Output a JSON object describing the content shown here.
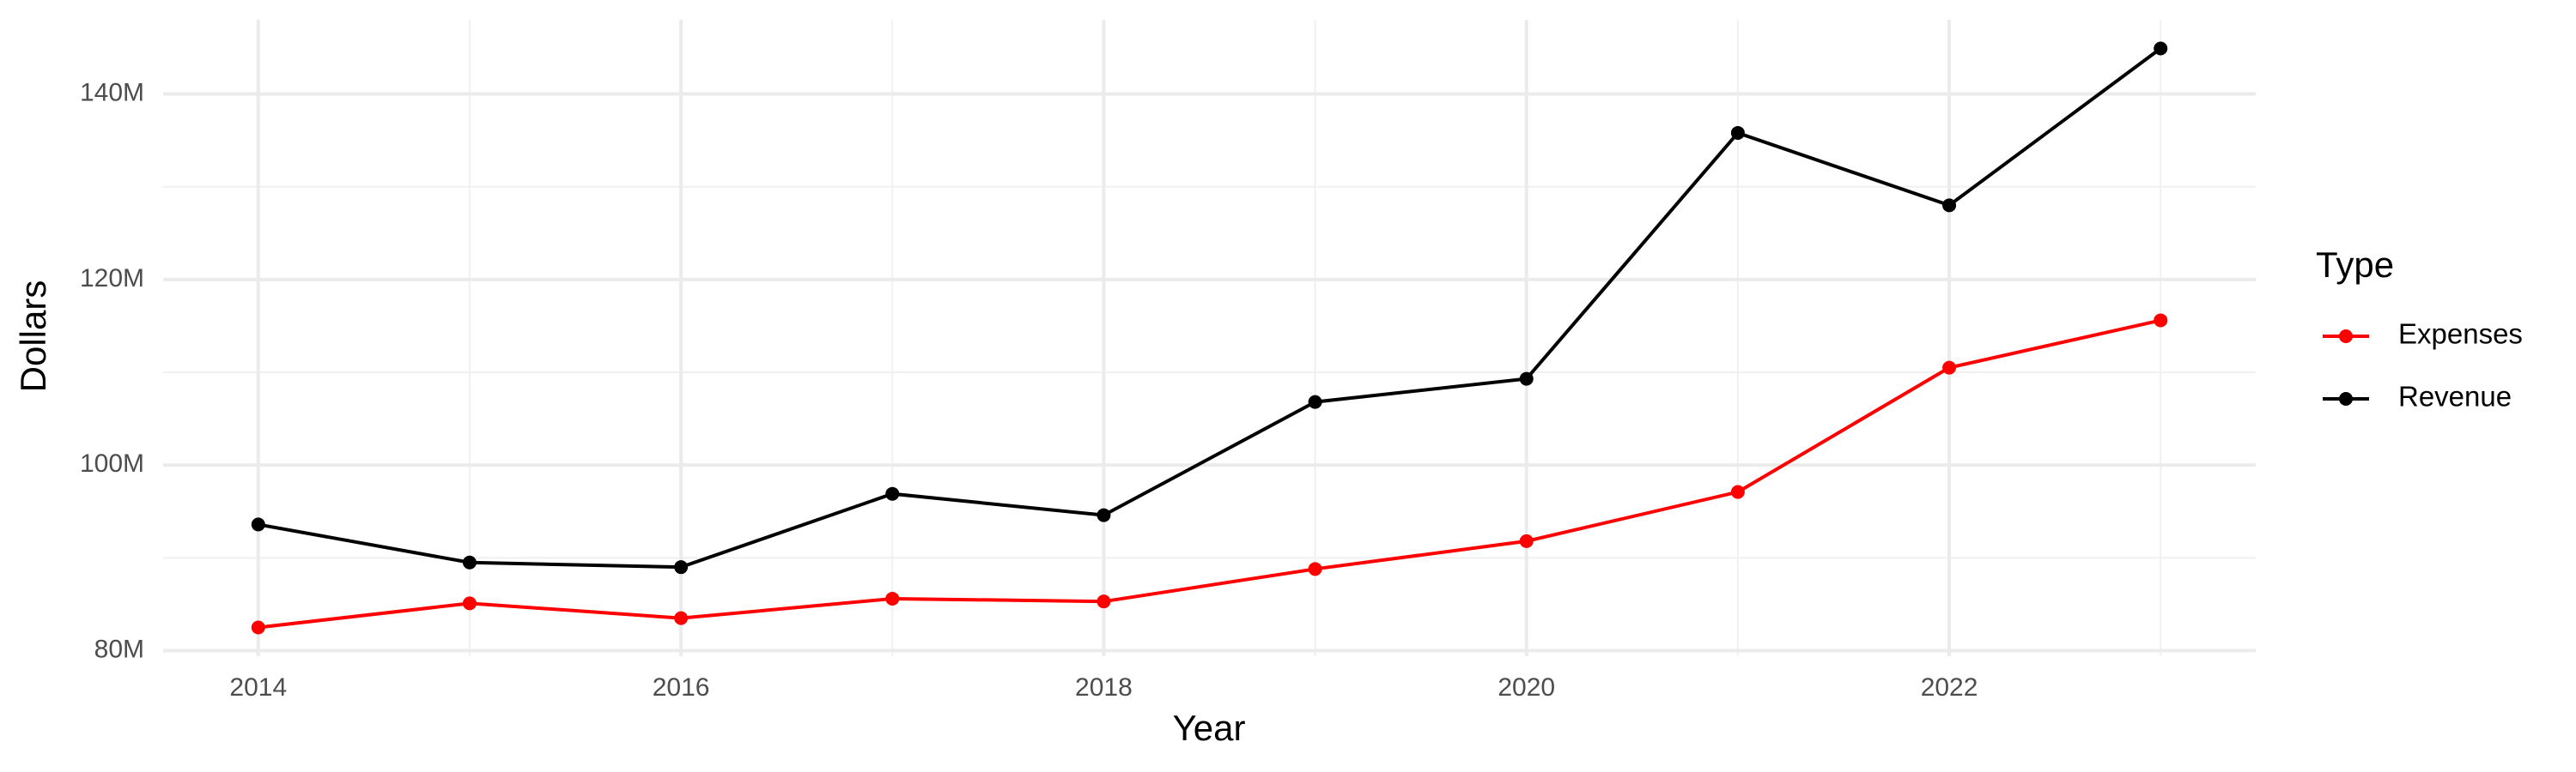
{
  "chart_data": {
    "type": "line",
    "x_label": "Year",
    "y_label": "Dollars",
    "legend_title": "Type",
    "x": [
      2014,
      2015,
      2016,
      2017,
      2018,
      2019,
      2020,
      2021,
      2022,
      2023
    ],
    "series": [
      {
        "name": "Expenses",
        "color": "#ff0000",
        "values": [
          82500000,
          85100000,
          83500000,
          85600000,
          85300000,
          88800000,
          91800000,
          97100000,
          110500000,
          115600000
        ]
      },
      {
        "name": "Revenue",
        "color": "#000000",
        "values": [
          93600000,
          89500000,
          89000000,
          96900000,
          94600000,
          106800000,
          109300000,
          135800000,
          128000000,
          144900000
        ]
      }
    ],
    "xlim": [
      2013.55,
      2023.45
    ],
    "xticks": [
      2014,
      2016,
      2018,
      2020,
      2022
    ],
    "ylim": [
      79400000,
      148000000
    ],
    "yticks": [
      {
        "value": 80000000,
        "label": "80M"
      },
      {
        "value": 100000000,
        "label": "100M"
      },
      {
        "value": 120000000,
        "label": "120M"
      },
      {
        "value": 140000000,
        "label": "140M"
      }
    ],
    "grid": true,
    "legend": "right"
  }
}
